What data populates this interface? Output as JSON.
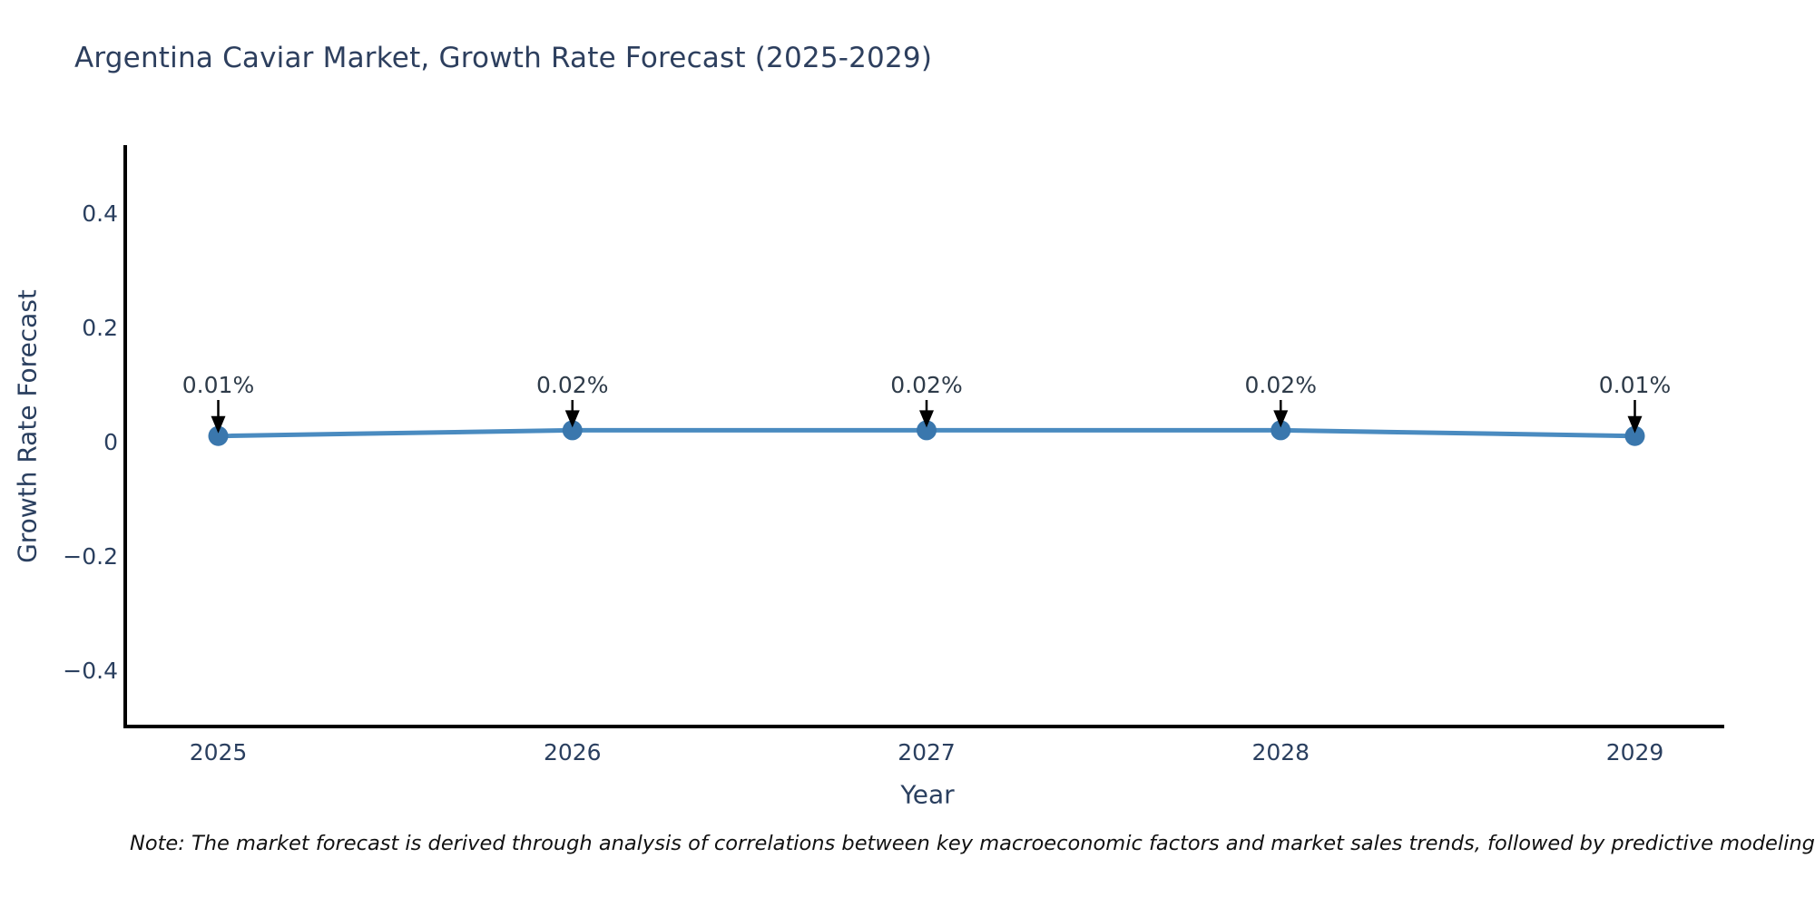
{
  "chart_data": {
    "type": "line",
    "title": "Argentina Caviar Market, Growth Rate Forecast (2025-2029)",
    "xlabel": "Year",
    "ylabel": "Growth Rate Forecast",
    "categories": [
      "2025",
      "2026",
      "2027",
      "2028",
      "2029"
    ],
    "series": [
      {
        "name": "Growth Rate Forecast",
        "values": [
          0.01,
          0.02,
          0.02,
          0.02,
          0.01
        ]
      }
    ],
    "point_labels": [
      "0.01%",
      "0.02%",
      "0.02%",
      "0.02%",
      "0.01%"
    ],
    "yticks": [
      {
        "value": 0.4,
        "label": "0.4"
      },
      {
        "value": 0.2,
        "label": "0.2"
      },
      {
        "value": 0,
        "label": "0"
      },
      {
        "value": -0.2,
        "label": "−0.2"
      },
      {
        "value": -0.4,
        "label": "−0.4"
      }
    ],
    "ylim": [
      -0.52,
      0.52
    ],
    "grid": false,
    "legend": "none",
    "colors": {
      "line": "#4a8bc0",
      "marker": "#3a77ad",
      "axis": "#000000",
      "tick_text": "#2a3f5f",
      "annotation_text": "#2e3b49",
      "annotation_arrow": "#000000",
      "title_text": "#2d3f5e",
      "note_text": "#111111",
      "background": "#ffffff"
    }
  },
  "note": "Note: The market forecast is derived through analysis of correlations between key macroeconomic factors and market sales trends, followed by predictive modeling to project future sales."
}
